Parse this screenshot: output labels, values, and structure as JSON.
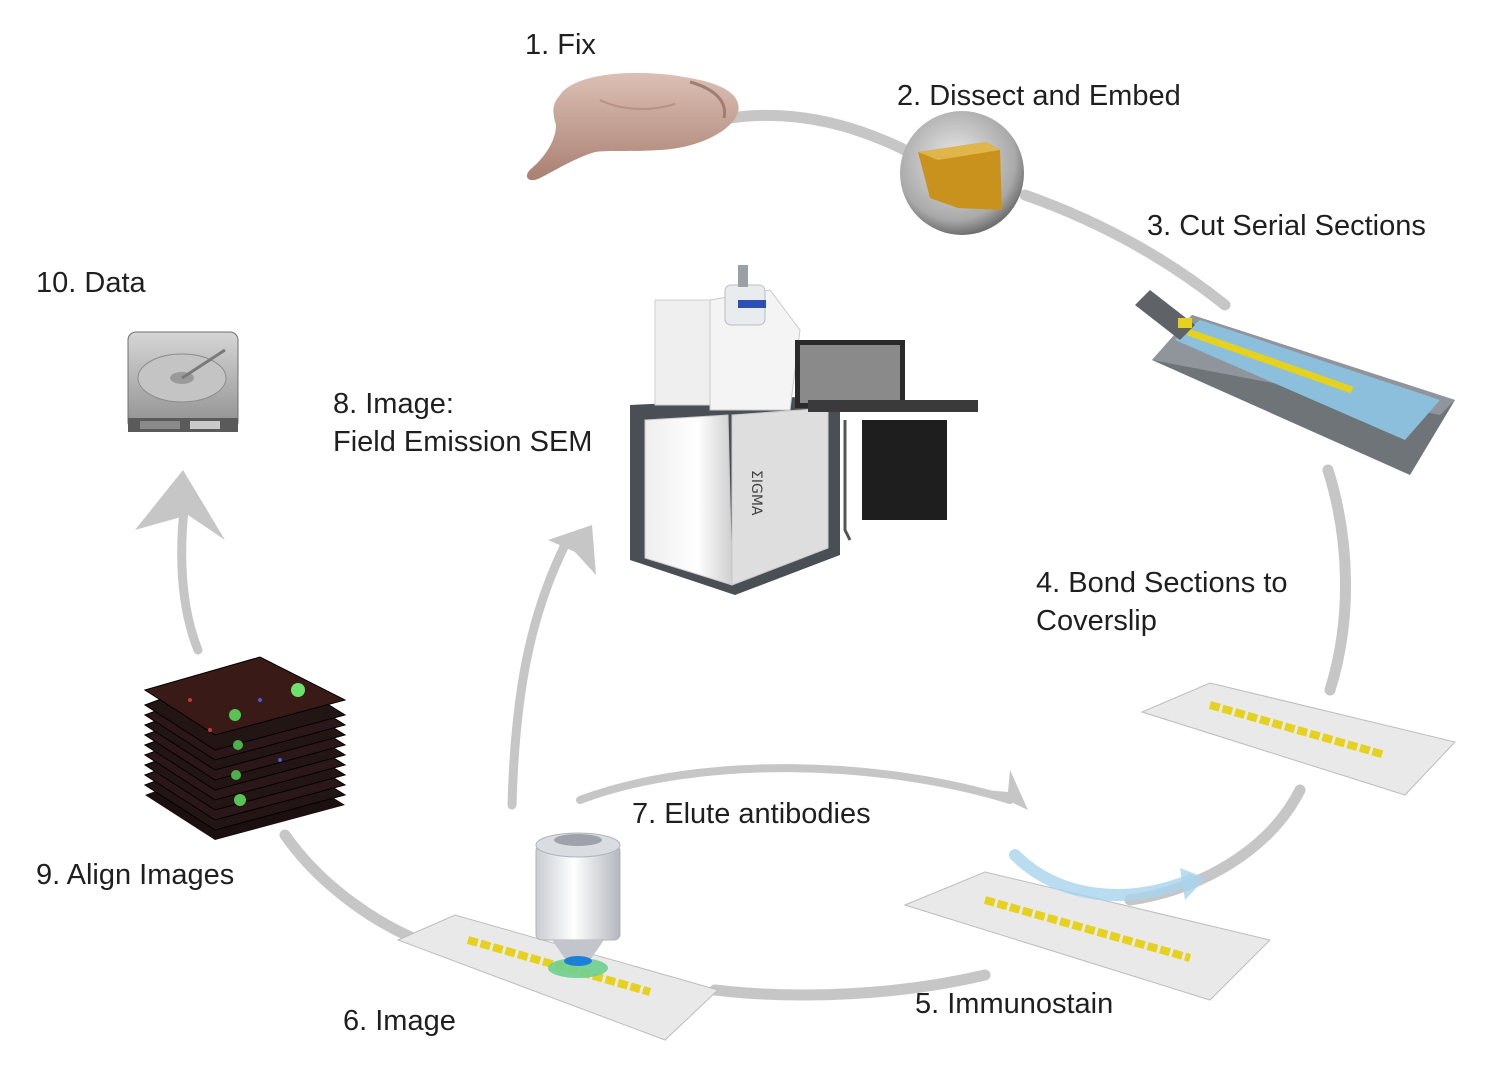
{
  "steps": [
    {
      "id": "fix",
      "lines": [
        "1. Fix"
      ]
    },
    {
      "id": "dissect",
      "lines": [
        "2. Dissect and Embed"
      ]
    },
    {
      "id": "cut",
      "lines": [
        "3. Cut Serial Sections"
      ]
    },
    {
      "id": "bond",
      "lines": [
        "4. Bond Sections to",
        "Coverslip"
      ]
    },
    {
      "id": "immunostain",
      "lines": [
        "5. Immunostain"
      ]
    },
    {
      "id": "image",
      "lines": [
        "6. Image"
      ]
    },
    {
      "id": "elute",
      "lines": [
        "7. Elute antibodies"
      ]
    },
    {
      "id": "sem",
      "lines": [
        "8. Image:",
        "Field Emission SEM"
      ]
    },
    {
      "id": "align",
      "lines": [
        "9. Align Images"
      ]
    },
    {
      "id": "data",
      "lines": [
        "10. Data"
      ]
    }
  ],
  "colors": {
    "arrow": "#c6c6c6",
    "ribbon": "#e6d21e",
    "trough_water": "#8bbfdb",
    "brain": "#c9a79a",
    "block": "#c9921c",
    "stain_flow": "#a9d3ee",
    "objective_light": "#1e7fd8"
  },
  "icons": [
    "brain-icon",
    "embedded-block-icon",
    "diamond-knife-trough-icon",
    "coverslip-icon",
    "objective-lens-icon",
    "sem-microscope-icon",
    "image-stack-icon",
    "hard-drive-icon"
  ]
}
